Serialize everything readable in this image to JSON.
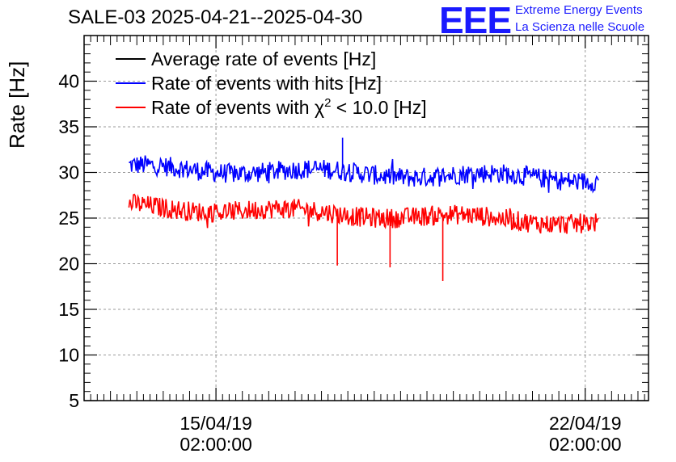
{
  "header": {
    "title": "SALE-03 2025-04-21--2025-04-30",
    "logo_text": "EEE",
    "org_line1": "Extreme Energy Events",
    "org_line2": "La Scienza nelle Scuole"
  },
  "chart_data": {
    "type": "line",
    "title": "SALE-03 2025-04-21--2025-04-30",
    "ylabel": "Rate [Hz]",
    "xlabel": "",
    "ylim": [
      5,
      45
    ],
    "yticks": [
      5,
      10,
      15,
      20,
      25,
      30,
      35,
      40
    ],
    "xticks": [
      {
        "value": 0,
        "line1": "15/04/19",
        "line2": "02:00:00"
      },
      {
        "value": 7,
        "line1": "22/04/19",
        "line2": "02:00:00"
      }
    ],
    "xlim": [
      -2.5,
      8.2
    ],
    "grid": true,
    "legend_position": "top-left",
    "series": [
      {
        "name": "Average rate of events [Hz]",
        "color": "#000000",
        "values": []
      },
      {
        "name": "Rate of events with hits [Hz]",
        "color": "#0000ff",
        "x_start": -1.65,
        "x_end": 7.25,
        "level_start": 30.5,
        "level_end": 29.3,
        "noise": 1.1,
        "spikes": [
          {
            "x": 2.4,
            "value": 33.8
          }
        ]
      },
      {
        "name": "Rate of events with χ² < 10.0 [Hz]",
        "color": "#ff0000",
        "x_start": -1.65,
        "x_end": 7.25,
        "level_start": 26.3,
        "level_end": 24.5,
        "noise": 1.1,
        "dips": [
          {
            "x": 2.3,
            "value": 19.8
          },
          {
            "x": 3.3,
            "value": 19.6
          },
          {
            "x": 4.3,
            "value": 18.1
          }
        ]
      }
    ],
    "legend": {
      "avg": "Average rate of events [Hz]",
      "hits": "Rate of events with hits [Hz]",
      "chi_prefix": "Rate of events with χ",
      "chi_sup": "2",
      "chi_suffix": " < 10.0 [Hz]"
    }
  }
}
